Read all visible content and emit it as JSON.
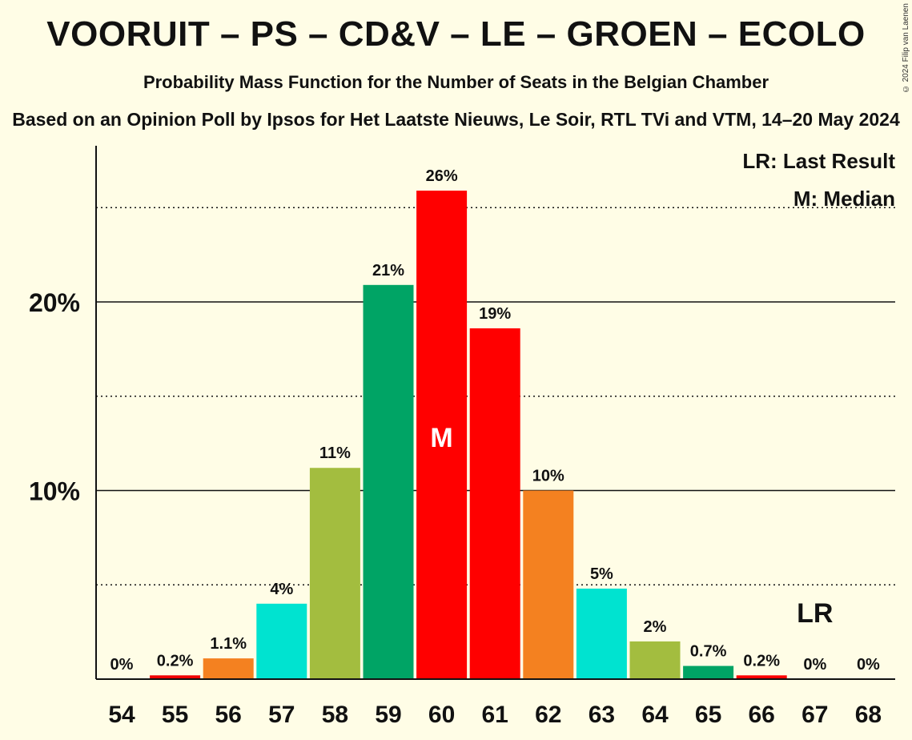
{
  "chart_data": {
    "type": "bar",
    "title": "VOORUIT – PS – CD&V – LE – GROEN – ECOLO",
    "subtitle": "Probability Mass Function for the Number of Seats in the Belgian Chamber",
    "source": "Based on an Opinion Poll by Ipsos for Het Laatste Nieuws, Le Soir, RTL TVi and VTM, 14–20 May 2024",
    "copyright": "© 2024 Filip van Laenen",
    "categories": [
      "54",
      "55",
      "56",
      "57",
      "58",
      "59",
      "60",
      "61",
      "62",
      "63",
      "64",
      "65",
      "66",
      "67",
      "68"
    ],
    "values": [
      0,
      0.2,
      1.1,
      4,
      11.2,
      20.9,
      25.9,
      18.6,
      10,
      4.8,
      2.0,
      0.7,
      0.2,
      0,
      0
    ],
    "labels": [
      "0%",
      "0.2%",
      "1.1%",
      "4%",
      "11%",
      "21%",
      "26%",
      "19%",
      "10%",
      "5%",
      "2%",
      "0.7%",
      "0.2%",
      "0%",
      "0%"
    ],
    "colors": [
      "#f00000",
      "#f00000",
      "#f48120",
      "#00e3d0",
      "#a3bd3f",
      "#00a465",
      "#ff0000",
      "#ff0000",
      "#f48120",
      "#00e3d0",
      "#a3bd3f",
      "#00a465",
      "#ff0000",
      "#ff0000",
      "#ff0000"
    ],
    "ylim": [
      0,
      28
    ],
    "yticks": [
      10,
      20
    ],
    "ytick_labels": [
      "10%",
      "20%"
    ],
    "minor_gridlines": [
      5,
      15,
      25
    ],
    "median_category": "60",
    "median_marker": "M",
    "last_result_category": "67",
    "last_result_marker": "LR",
    "legend": [
      "LR: Last Result",
      "M: Median"
    ],
    "legend_position": "top-right"
  }
}
